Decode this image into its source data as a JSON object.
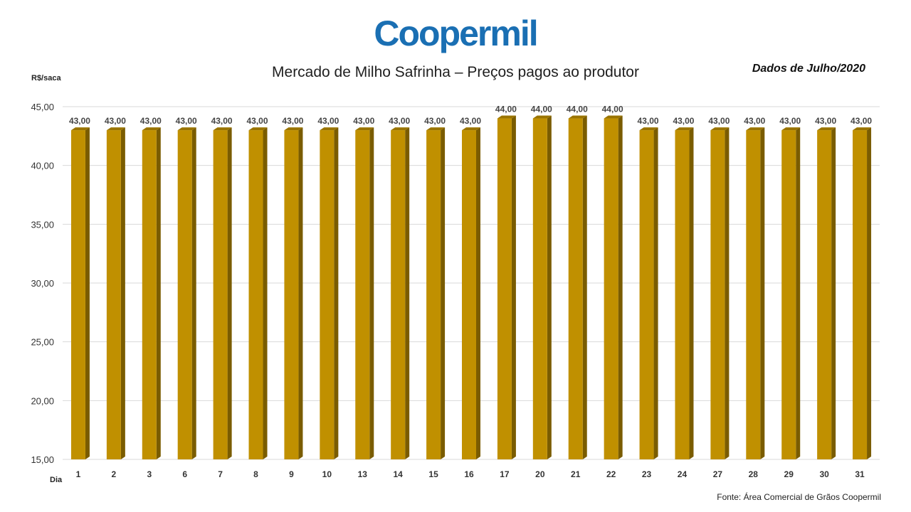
{
  "logo": {
    "text": "Coopermil",
    "color": "#1a6fb3"
  },
  "chart_data": {
    "type": "bar",
    "title": "Mercado de Milho Safrinha – Preços pagos ao produtor",
    "subtitle": "Dados de Julho/2020",
    "ylabel": "R$/saca",
    "xlabel": "Dia",
    "source": "Fonte:  Área Comercial de Grãos Coopermil",
    "ylim": [
      15,
      45
    ],
    "yticks": [
      15,
      20,
      25,
      30,
      35,
      40,
      45
    ],
    "grid": true,
    "categories": [
      "1",
      "2",
      "3",
      "6",
      "7",
      "8",
      "9",
      "10",
      "13",
      "14",
      "15",
      "16",
      "17",
      "20",
      "21",
      "22",
      "23",
      "24",
      "27",
      "28",
      "29",
      "30",
      "31"
    ],
    "values": [
      43,
      43,
      43,
      43,
      43,
      43,
      43,
      43,
      43,
      43,
      43,
      43,
      44,
      44,
      44,
      44,
      43,
      43,
      43,
      43,
      43,
      43,
      43
    ],
    "bar_color": "#c09000"
  }
}
